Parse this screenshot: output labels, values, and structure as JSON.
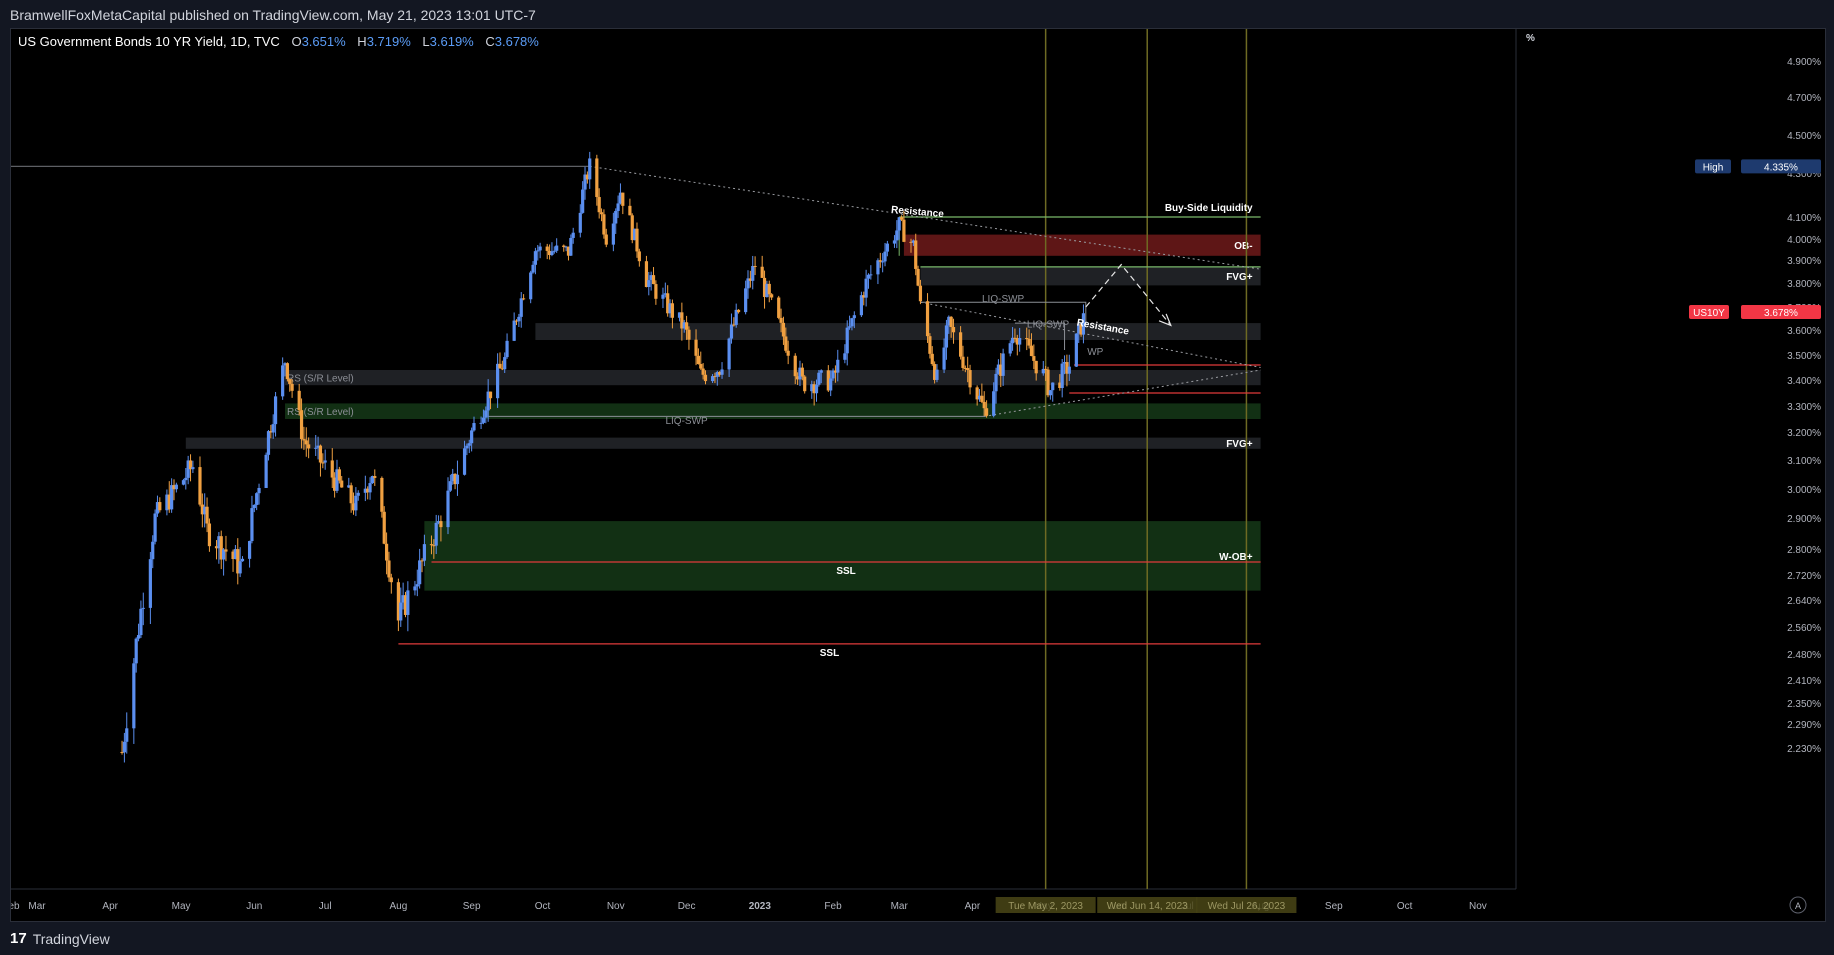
{
  "header": {
    "published_text": "BramwellFoxMetaCapital published on TradingView.com, May 21, 2023 13:01 UTC-7"
  },
  "legend": {
    "symbol_text": "US Government Bonds 10 YR Yield, 1D, TVC",
    "o_label": "O",
    "o_value": "3.651%",
    "h_label": "H",
    "h_value": "3.719%",
    "l_label": "L",
    "l_value": "3.619%",
    "c_label": "C",
    "c_value": "3.678%"
  },
  "footer": {
    "brand": "TradingView",
    "logo_glyph": "17"
  },
  "colors": {
    "up": "#5b8ff0",
    "down": "#f0a041",
    "background": "#000000",
    "ssl": "#e03a3a",
    "green_zone": "#1c4a1e",
    "red_zone": "#6e1a1a",
    "gray_zone": "#2a2c31",
    "buy_side": "#79b86a",
    "vline": "#6e6a23"
  },
  "chart_data": {
    "type": "candlestick",
    "y_unit": "%",
    "ylim": [
      2.2,
      5.0
    ],
    "x_range": [
      "2022-02-18",
      "2023-11-15"
    ],
    "x_ticks": [
      "Feb",
      "Mar",
      "Apr",
      "May",
      "Jun",
      "Jul",
      "Aug",
      "Sep",
      "Oct",
      "Nov",
      "Dec",
      "2023",
      "Feb",
      "Mar",
      "Apr",
      "May",
      "Jun",
      "Jul",
      "Aug",
      "Sep",
      "Oct",
      "Nov"
    ],
    "x_tick_dates": [
      "2022-02-18",
      "2022-03-01",
      "2022-04-01",
      "2022-05-01",
      "2022-06-01",
      "2022-07-01",
      "2022-08-01",
      "2022-09-01",
      "2022-10-01",
      "2022-11-01",
      "2022-12-01",
      "2023-01-01",
      "2023-02-01",
      "2023-03-01",
      "2023-04-01",
      "2023-05-01",
      "2023-06-01",
      "2023-07-01",
      "2023-08-01",
      "2023-09-01",
      "2023-10-01",
      "2023-11-01"
    ],
    "y_ticks": [
      "4.900%",
      "4.700%",
      "4.500%",
      "4.300%",
      "4.100%",
      "4.000%",
      "3.900%",
      "3.800%",
      "3.700%",
      "3.600%",
      "3.500%",
      "3.400%",
      "3.300%",
      "3.200%",
      "3.100%",
      "3.000%",
      "2.900%",
      "2.800%",
      "2.720%",
      "2.640%",
      "2.560%",
      "2.480%",
      "2.410%",
      "2.350%",
      "2.290%",
      "2.230%"
    ],
    "y_tick_values": [
      4.9,
      4.7,
      4.5,
      4.3,
      4.1,
      4.0,
      3.9,
      3.8,
      3.7,
      3.6,
      3.5,
      3.4,
      3.3,
      3.2,
      3.1,
      3.0,
      2.9,
      2.8,
      2.72,
      2.64,
      2.56,
      2.48,
      2.41,
      2.35,
      2.29,
      2.23
    ],
    "price_path": [
      [
        "2022-04-06",
        2.22
      ],
      [
        "2022-04-20",
        2.9
      ],
      [
        "2022-05-06",
        3.08
      ],
      [
        "2022-05-12",
        2.86
      ],
      [
        "2022-05-27",
        2.74
      ],
      [
        "2022-06-14",
        3.48
      ],
      [
        "2022-06-22",
        3.17
      ],
      [
        "2022-07-14",
        2.94
      ],
      [
        "2022-07-21",
        3.06
      ],
      [
        "2022-08-01",
        2.58
      ],
      [
        "2022-08-18",
        2.88
      ],
      [
        "2022-09-01",
        3.2
      ],
      [
        "2022-09-15",
        3.48
      ],
      [
        "2022-09-28",
        3.95
      ],
      [
        "2022-10-12",
        3.94
      ],
      [
        "2022-10-21",
        4.34
      ],
      [
        "2022-10-28",
        4.01
      ],
      [
        "2022-11-03",
        4.22
      ],
      [
        "2022-11-14",
        3.82
      ],
      [
        "2022-11-30",
        3.61
      ],
      [
        "2022-12-07",
        3.42
      ],
      [
        "2022-12-15",
        3.45
      ],
      [
        "2022-12-30",
        3.88
      ],
      [
        "2023-01-10",
        3.6
      ],
      [
        "2023-01-19",
        3.39
      ],
      [
        "2023-02-01",
        3.4
      ],
      [
        "2023-02-15",
        3.8
      ],
      [
        "2023-03-01",
        4.06
      ],
      [
        "2023-03-07",
        3.97
      ],
      [
        "2023-03-10",
        3.7
      ],
      [
        "2023-03-17",
        3.4
      ],
      [
        "2023-03-22",
        3.62
      ],
      [
        "2023-04-06",
        3.28
      ],
      [
        "2023-04-19",
        3.6
      ],
      [
        "2023-05-01",
        3.42
      ],
      [
        "2023-05-04",
        3.36
      ],
      [
        "2023-05-12",
        3.46
      ],
      [
        "2023-05-19",
        3.68
      ]
    ],
    "last_value": 3.678,
    "high_value": 4.335,
    "high_label": "High",
    "high_value_text": "4.335%",
    "symbol_tag": "US10Y",
    "last_value_text": "3.678%",
    "vertical_dates": [
      {
        "date": "2023-05-02",
        "label": "Tue May 2, 2023"
      },
      {
        "date": "2023-06-14",
        "label": "Wed Jun 14, 2023"
      },
      {
        "date": "2023-07-26",
        "label": "Wed Jul 26, 2023"
      }
    ],
    "zones": [
      {
        "label": "OB-",
        "y1": 3.92,
        "y2": 4.02,
        "x1": "2023-03-03",
        "x2": "2023-08-01",
        "kind": "red"
      },
      {
        "label": "FVG+",
        "y1": 3.79,
        "y2": 3.87,
        "x1": "2023-03-10",
        "x2": "2023-08-01",
        "kind": "gray"
      },
      {
        "label": "",
        "y1": 3.56,
        "y2": 3.63,
        "x1": "2022-09-28",
        "x2": "2023-08-01",
        "kind": "gray"
      },
      {
        "label": "RS (S/R Level)",
        "y1": 3.38,
        "y2": 3.44,
        "x1": "2022-06-14",
        "x2": "2023-08-01",
        "kind": "gray"
      },
      {
        "label": "RS (S/R Level)",
        "y1": 3.25,
        "y2": 3.31,
        "x1": "2022-06-14",
        "x2": "2023-08-01",
        "kind": "green"
      },
      {
        "label": "FVG+",
        "y1": 3.14,
        "y2": 3.18,
        "x1": "2022-05-03",
        "x2": "2023-08-01",
        "kind": "gray"
      },
      {
        "label": "W-OB+",
        "y1": 2.67,
        "y2": 2.89,
        "x1": "2022-08-12",
        "x2": "2023-08-01",
        "kind": "green"
      }
    ],
    "levels": [
      {
        "label": "Buy-Side Liquidity",
        "y": 4.1,
        "x1": "2023-03-01",
        "x2": "2023-08-01",
        "kind": "buy"
      },
      {
        "label": "SSL",
        "y": 2.76,
        "x1": "2022-08-15",
        "x2": "2023-08-01",
        "kind": "ssl"
      },
      {
        "label": "SSL",
        "y": 2.51,
        "x1": "2022-08-01",
        "x2": "2023-08-01",
        "kind": "ssl"
      },
      {
        "label": "",
        "y": 3.46,
        "x1": "2023-05-14",
        "x2": "2023-08-01",
        "kind": "ssl"
      },
      {
        "label": "",
        "y": 3.35,
        "x1": "2023-05-12",
        "x2": "2023-08-01",
        "kind": "ssl"
      },
      {
        "label": "",
        "y": 3.87,
        "x1": "2023-03-10",
        "x2": "2023-08-01",
        "kind": "buy"
      },
      {
        "label": "",
        "y": 4.335,
        "x1": "2022-02-18",
        "x2": "2022-10-21",
        "kind": "gray"
      }
    ],
    "annotations": [
      {
        "text": "Resistance",
        "date": "2023-03-01",
        "y": 4.11
      },
      {
        "text": "Resistance",
        "date": "2023-05-26",
        "y": 3.6
      },
      {
        "text": "LIQ-SWP",
        "date": "2022-12-01",
        "y": 3.23
      },
      {
        "text": "LIQ-SWP",
        "date": "2023-04-14",
        "y": 3.72
      },
      {
        "text": "LIQ-SWP",
        "date": "2023-05-03",
        "y": 3.61
      },
      {
        "text": "WP",
        "date": "2023-05-23",
        "y": 3.5
      }
    ]
  }
}
